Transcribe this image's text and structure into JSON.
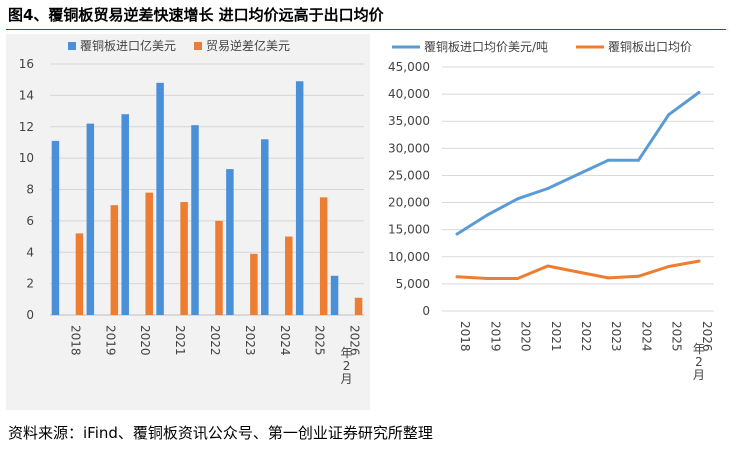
{
  "figure": {
    "title": "图4、覆铜板贸易逆差快速增长 进口均价远高于出口均价",
    "source": "资料来源：iFind、覆铜板资讯公众号、第一创业证券研究所整理"
  },
  "chart_data": [
    {
      "type": "bar",
      "categories": [
        "2018",
        "2019",
        "2020",
        "2021",
        "2022",
        "2023",
        "2024",
        "2025",
        "2026年2月"
      ],
      "series": [
        {
          "name": "覆铜板进口亿美元",
          "color": "#4a90d9",
          "values": [
            11.1,
            12.2,
            12.8,
            14.8,
            12.1,
            9.3,
            11.2,
            14.9,
            2.5
          ]
        },
        {
          "name": "贸易逆差亿美元",
          "color": "#ed7d31",
          "values": [
            5.2,
            7.0,
            7.8,
            7.2,
            6.0,
            3.9,
            5.0,
            7.5,
            1.1
          ]
        }
      ],
      "ylim": [
        0,
        16
      ],
      "yticks": [
        "0",
        "2",
        "4",
        "6",
        "8",
        "10",
        "12",
        "14",
        "16"
      ],
      "grid": true,
      "legend": "top"
    },
    {
      "type": "line",
      "categories": [
        "2018",
        "2019",
        "2020",
        "2021",
        "2022",
        "2023",
        "2024",
        "2025",
        "2026年2月"
      ],
      "series": [
        {
          "name": "覆铜板进口均价美元/吨",
          "color": "#5b9bd5",
          "values": [
            14200,
            17700,
            20700,
            22600,
            25200,
            27800,
            27800,
            36200,
            40300
          ]
        },
        {
          "name": "覆铜板出口均价",
          "color": "#ed7d31",
          "values": [
            6300,
            6000,
            6000,
            8300,
            7200,
            6100,
            6400,
            8200,
            9200
          ]
        }
      ],
      "ylim": [
        0,
        45000
      ],
      "yticks": [
        "0",
        "5,000",
        "10,000",
        "15,000",
        "20,000",
        "25,000",
        "30,000",
        "35,000",
        "40,000",
        "45,000"
      ],
      "grid": true,
      "legend": "top"
    }
  ]
}
